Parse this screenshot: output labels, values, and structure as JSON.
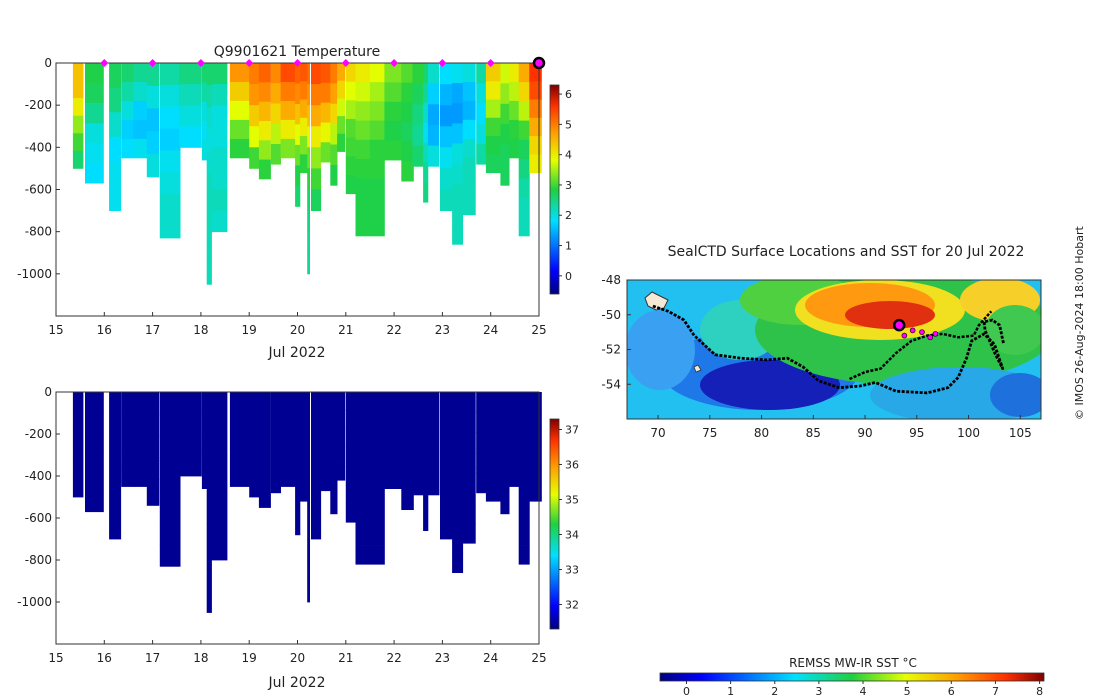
{
  "chart_data": [
    {
      "type": "heatmap",
      "title": "Q9901621  Temperature",
      "xlabel": "Jul 2022",
      "ylabel": "",
      "xlim": [
        15,
        25
      ],
      "ylim": [
        -1200,
        0
      ],
      "x_ticks": [
        "15",
        "16",
        "17",
        "18",
        "19",
        "20",
        "21",
        "22",
        "23",
        "24",
        "25"
      ],
      "y_ticks": [
        "0",
        "-200",
        "-400",
        "-600",
        "-800",
        "-1000"
      ],
      "colorbar": {
        "range": [
          -0.6,
          6.3
        ],
        "ticks": [
          "0",
          "1",
          "2",
          "3",
          "4",
          "5",
          "6"
        ]
      },
      "surface_markers_x": [
        16,
        17,
        18,
        19,
        20,
        21,
        22,
        23,
        24
      ],
      "current_position_x": 25,
      "profiles": [
        {
          "x": 15.35,
          "w": 0.21,
          "depth": 500,
          "vals": [
            4.4,
            4.4,
            4.0,
            3.4,
            3.0,
            2.6
          ]
        },
        {
          "x": 15.6,
          "w": 0.38,
          "depth": 570,
          "vals": [
            2.8,
            2.7,
            2.4,
            2.0,
            1.9,
            1.8
          ]
        },
        {
          "x": 16.1,
          "w": 0.24,
          "depth": 700,
          "vals": [
            2.7,
            2.5,
            2.1,
            1.8,
            1.9,
            1.9
          ]
        },
        {
          "x": 16.35,
          "w": 0.26,
          "depth": 450,
          "vals": [
            2.6,
            2.3,
            2.0,
            1.7,
            1.8
          ]
        },
        {
          "x": 16.6,
          "w": 0.3,
          "depth": 450,
          "vals": [
            2.4,
            2.1,
            1.7,
            1.6,
            1.9
          ]
        },
        {
          "x": 16.88,
          "w": 0.25,
          "depth": 540,
          "vals": [
            2.4,
            2.0,
            1.6,
            1.7,
            2.0
          ]
        },
        {
          "x": 17.15,
          "w": 0.42,
          "depth": 830,
          "vals": [
            2.3,
            2.0,
            1.8,
            1.7,
            1.9,
            2.0,
            2.1,
            2.1
          ]
        },
        {
          "x": 17.55,
          "w": 0.46,
          "depth": 400,
          "vals": [
            2.5,
            2.2,
            2.0,
            1.8
          ]
        },
        {
          "x": 18.02,
          "w": 0.15,
          "depth": 460,
          "vals": [
            2.6,
            2.3,
            2.0,
            1.9,
            2.0
          ]
        },
        {
          "x": 18.12,
          "w": 0.1,
          "depth": 1050,
          "vals": [
            2.6,
            2.3,
            2.1,
            2.0,
            2.1,
            2.2,
            2.2,
            2.2,
            2.2,
            2.2
          ]
        },
        {
          "x": 18.22,
          "w": 0.32,
          "depth": 800,
          "vals": [
            2.6,
            2.2,
            2.0,
            2.0,
            2.1,
            2.1,
            2.2,
            2.1
          ]
        },
        {
          "x": 18.6,
          "w": 0.4,
          "depth": 450,
          "vals": [
            4.8,
            4.3,
            3.8,
            3.2,
            2.9
          ]
        },
        {
          "x": 19.0,
          "w": 0.2,
          "depth": 500,
          "vals": [
            5.0,
            4.8,
            4.3,
            3.8,
            3.0
          ]
        },
        {
          "x": 19.2,
          "w": 0.24,
          "depth": 550,
          "vals": [
            5.2,
            4.9,
            4.5,
            4.0,
            3.4,
            2.9
          ]
        },
        {
          "x": 19.45,
          "w": 0.2,
          "depth": 480,
          "vals": [
            4.9,
            4.6,
            4.2,
            3.6,
            3.1
          ]
        },
        {
          "x": 19.65,
          "w": 0.3,
          "depth": 450,
          "vals": [
            5.4,
            5.0,
            4.6,
            4.0,
            3.3
          ]
        },
        {
          "x": 19.95,
          "w": 0.1,
          "depth": 680,
          "vals": [
            5.2,
            4.9,
            4.4,
            3.8,
            3.2,
            2.8,
            2.6
          ]
        },
        {
          "x": 20.05,
          "w": 0.15,
          "depth": 520,
          "vals": [
            5.3,
            5.0,
            4.6,
            4.0,
            3.3,
            2.9
          ]
        },
        {
          "x": 20.2,
          "w": 0.05,
          "depth": 1000,
          "vals": [
            5.1,
            4.8,
            4.4,
            3.9,
            3.2,
            2.9,
            2.6,
            2.5,
            2.4,
            2.4
          ]
        },
        {
          "x": 20.28,
          "w": 0.2,
          "depth": 700,
          "vals": [
            5.4,
            5.0,
            4.6,
            4.0,
            3.4,
            3.0,
            2.7
          ]
        },
        {
          "x": 20.48,
          "w": 0.2,
          "depth": 470,
          "vals": [
            5.3,
            5.0,
            4.5,
            3.9,
            3.2
          ]
        },
        {
          "x": 20.68,
          "w": 0.14,
          "depth": 580,
          "vals": [
            5.0,
            4.7,
            4.2,
            3.6,
            3.1,
            2.8
          ]
        },
        {
          "x": 20.82,
          "w": 0.16,
          "depth": 420,
          "vals": [
            4.6,
            4.2,
            3.7,
            3.2,
            2.9
          ]
        },
        {
          "x": 21.0,
          "w": 0.2,
          "depth": 620,
          "vals": [
            4.2,
            3.8,
            3.5,
            3.1,
            3.0,
            2.9,
            2.8
          ]
        },
        {
          "x": 21.2,
          "w": 0.3,
          "depth": 820,
          "vals": [
            4.0,
            3.7,
            3.4,
            3.2,
            3.0,
            2.9,
            2.8,
            2.8,
            2.8
          ]
        },
        {
          "x": 21.5,
          "w": 0.3,
          "depth": 820,
          "vals": [
            3.8,
            3.5,
            3.3,
            3.1,
            2.9,
            2.9,
            2.8,
            2.8,
            2.8
          ]
        },
        {
          "x": 21.8,
          "w": 0.36,
          "depth": 460,
          "vals": [
            3.3,
            3.1,
            2.9,
            2.8,
            2.9
          ]
        },
        {
          "x": 22.15,
          "w": 0.25,
          "depth": 560,
          "vals": [
            3.1,
            2.9,
            2.8,
            2.7,
            2.8,
            2.9
          ]
        },
        {
          "x": 22.38,
          "w": 0.22,
          "depth": 490,
          "vals": [
            2.9,
            2.7,
            2.5,
            2.4,
            2.6
          ]
        },
        {
          "x": 22.6,
          "w": 0.1,
          "depth": 660,
          "vals": [
            2.6,
            2.4,
            2.1,
            1.9,
            2.2,
            2.4,
            2.5
          ]
        },
        {
          "x": 22.7,
          "w": 0.23,
          "depth": 490,
          "vals": [
            2.1,
            1.7,
            1.4,
            1.5,
            2.0
          ]
        },
        {
          "x": 22.95,
          "w": 0.25,
          "depth": 700,
          "vals": [
            1.8,
            1.5,
            1.3,
            1.6,
            1.9,
            2.1,
            2.2
          ]
        },
        {
          "x": 23.2,
          "w": 0.22,
          "depth": 860,
          "vals": [
            1.9,
            1.4,
            1.3,
            1.6,
            2.0,
            2.1,
            2.2,
            2.2,
            2.2
          ]
        },
        {
          "x": 23.42,
          "w": 0.26,
          "depth": 720,
          "vals": [
            2.0,
            1.6,
            1.5,
            1.8,
            2.1,
            2.2,
            2.2,
            2.2
          ]
        },
        {
          "x": 23.7,
          "w": 0.22,
          "depth": 480,
          "vals": [
            2.3,
            2.0,
            1.8,
            2.0,
            2.3
          ]
        },
        {
          "x": 23.9,
          "w": 0.3,
          "depth": 520,
          "vals": [
            4.3,
            4.0,
            3.5,
            3.0,
            2.8,
            2.7
          ]
        },
        {
          "x": 24.2,
          "w": 0.18,
          "depth": 580,
          "vals": [
            3.7,
            3.4,
            3.0,
            2.8,
            2.7,
            2.7
          ]
        },
        {
          "x": 24.38,
          "w": 0.2,
          "depth": 450,
          "vals": [
            4.0,
            3.6,
            3.2,
            2.9,
            2.8
          ]
        },
        {
          "x": 24.58,
          "w": 0.22,
          "depth": 820,
          "vals": [
            4.6,
            4.2,
            3.6,
            3.0,
            2.7,
            2.5,
            2.3,
            2.2,
            2.2
          ]
        },
        {
          "x": 24.8,
          "w": 0.25,
          "depth": 520,
          "vals": [
            5.6,
            5.4,
            5.0,
            4.6,
            4.2,
            4.0
          ]
        }
      ]
    },
    {
      "type": "heatmap",
      "title": "",
      "xlabel": "Jul 2022",
      "ylabel": "",
      "xlim": [
        15,
        25
      ],
      "ylim": [
        -1200,
        0
      ],
      "x_ticks": [
        "15",
        "16",
        "17",
        "18",
        "19",
        "20",
        "21",
        "22",
        "23",
        "24",
        "25"
      ],
      "y_ticks": [
        "0",
        "-200",
        "-400",
        "-600",
        "-800",
        "-1000"
      ],
      "colorbar": {
        "range": [
          31.3,
          37.3
        ],
        "ticks": [
          "32",
          "33",
          "34",
          "35",
          "36",
          "37"
        ]
      },
      "fill_value": 31.4,
      "profiles_ref": "same depth extents as temperature section"
    },
    {
      "type": "heatmap",
      "title": "SealCTD Surface Locations and SST for 20 Jul 2022",
      "xlabel": "",
      "ylabel": "",
      "xlim": [
        67,
        107
      ],
      "ylim": [
        -56,
        -48
      ],
      "x_ticks": [
        "70",
        "75",
        "80",
        "85",
        "90",
        "95",
        "100",
        "105"
      ],
      "y_ticks": [
        "-48",
        "-50",
        "-52",
        "-54"
      ],
      "colorbar": {
        "label": "REMSS MW-IR SST °C",
        "range": [
          -0.6,
          8.1
        ],
        "ticks": [
          "0",
          "1",
          "2",
          "3",
          "4",
          "5",
          "6",
          "7",
          "8"
        ]
      },
      "track": [
        [
          69.5,
          -49.5
        ],
        [
          71,
          -49.8
        ],
        [
          72.5,
          -50.3
        ],
        [
          73.5,
          -51.2
        ],
        [
          75.5,
          -52.3
        ],
        [
          78,
          -52.5
        ],
        [
          80.5,
          -52.6
        ],
        [
          82.5,
          -52.5
        ],
        [
          84,
          -53
        ],
        [
          85.5,
          -53.8
        ],
        [
          87.5,
          -54.2
        ],
        [
          89.5,
          -54.1
        ],
        [
          91,
          -53.9
        ],
        [
          93,
          -54.4
        ],
        [
          96,
          -54.5
        ],
        [
          98,
          -54.2
        ],
        [
          99,
          -53.6
        ],
        [
          99.8,
          -52.5
        ],
        [
          100.3,
          -51.5
        ],
        [
          101.5,
          -51.1
        ],
        [
          102.5,
          -51.7
        ],
        [
          103.3,
          -53.1
        ],
        [
          102.6,
          -52.3
        ],
        [
          101.6,
          -50.9
        ],
        [
          101.5,
          -50.4
        ],
        [
          102.3,
          -50.3
        ],
        [
          103,
          -50.6
        ],
        [
          103.4,
          -51.7
        ]
      ],
      "track2": [
        [
          88.5,
          -53.7
        ],
        [
          90,
          -53.3
        ],
        [
          91.5,
          -53.1
        ],
        [
          93,
          -52.2
        ],
        [
          94.5,
          -51.5
        ],
        [
          96,
          -51.2
        ],
        [
          97.5,
          -51.1
        ],
        [
          99,
          -51.3
        ],
        [
          100.5,
          -51.2
        ],
        [
          101,
          -50.6
        ],
        [
          102.2,
          -49.8
        ]
      ],
      "recent_points": [
        [
          93.8,
          -51.2
        ],
        [
          94.6,
          -50.9
        ],
        [
          95.5,
          -51.0
        ],
        [
          96.3,
          -51.3
        ],
        [
          96.8,
          -51.1
        ]
      ],
      "current_position": [
        93.3,
        -50.6
      ],
      "credit": "© IMOS 26-Aug-2024 18:00 Hobart"
    }
  ]
}
